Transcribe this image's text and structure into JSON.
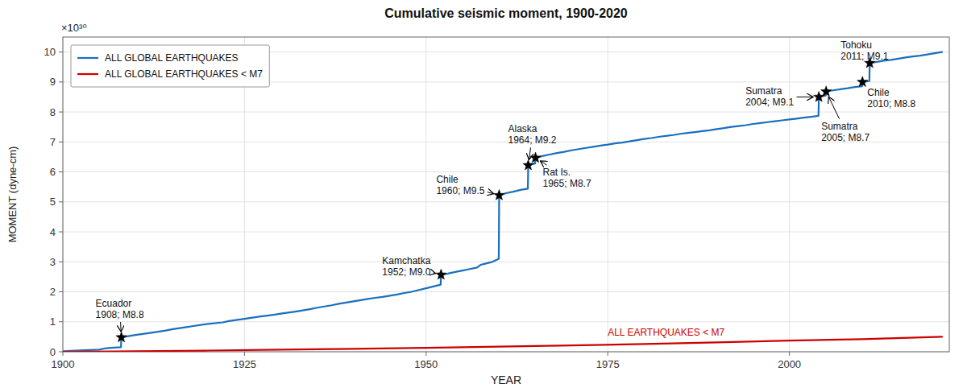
{
  "chart_data": {
    "type": "line",
    "title": "Cumulative seismic moment, 1900-2020",
    "xlabel": "YEAR",
    "ylabel": "MOMENT (dyne-cm)",
    "y_scale_label": "×10³⁰",
    "xlim": [
      1900,
      2022
    ],
    "ylim": [
      0,
      10.5
    ],
    "xticks": [
      1900,
      1925,
      1950,
      1975,
      2000
    ],
    "yticks": [
      0,
      1,
      2,
      3,
      4,
      5,
      6,
      7,
      8,
      9,
      10
    ],
    "grid": true,
    "legend": "upper left",
    "line_label": "ALL EARTHQUAKES < M7",
    "series": [
      {
        "name": "ALL GLOBAL EARTHQUAKES",
        "color": "#1a6fbd",
        "type": "line",
        "x": [
          1900,
          1903,
          1905,
          1906,
          1907,
          1908,
          1908.05,
          1909,
          1910,
          1912,
          1914,
          1915,
          1917,
          1918,
          1920,
          1922,
          1923,
          1925,
          1927,
          1929,
          1930,
          1932,
          1933,
          1934,
          1935,
          1936,
          1937,
          1938,
          1939,
          1940,
          1941,
          1942,
          1943,
          1944,
          1945,
          1946,
          1947,
          1948,
          1949,
          1950,
          1951,
          1952,
          1952.05,
          1953,
          1954,
          1955,
          1956,
          1957,
          1957.5,
          1958,
          1959,
          1960,
          1960.05,
          1961,
          1962,
          1963,
          1964,
          1964.05,
          1964.5,
          1965,
          1965.05,
          1966,
          1967,
          1968,
          1969,
          1970,
          1971,
          1972,
          1973,
          1974,
          1975,
          1976,
          1977,
          1978,
          1979,
          1980,
          1981,
          1982,
          1983,
          1984,
          1985,
          1986,
          1987,
          1988,
          1989,
          1990,
          1991,
          1992,
          1993,
          1994,
          1995,
          1996,
          1997,
          1998,
          1999,
          2000,
          2001,
          2002,
          2003,
          2004,
          2004.05,
          2004.5,
          2005,
          2005.05,
          2006,
          2007,
          2008,
          2009,
          2010,
          2010.05,
          2011,
          2011.05,
          2012,
          2013,
          2014,
          2015,
          2016,
          2017,
          2018,
          2019,
          2020,
          2021
        ],
        "values": [
          0.02,
          0.05,
          0.07,
          0.12,
          0.14,
          0.15,
          0.48,
          0.52,
          0.56,
          0.63,
          0.7,
          0.75,
          0.82,
          0.86,
          0.93,
          0.98,
          1.03,
          1.1,
          1.17,
          1.23,
          1.27,
          1.34,
          1.38,
          1.42,
          1.47,
          1.51,
          1.55,
          1.6,
          1.64,
          1.68,
          1.72,
          1.76,
          1.8,
          1.83,
          1.87,
          1.91,
          1.96,
          2.0,
          2.06,
          2.12,
          2.18,
          2.24,
          2.57,
          2.61,
          2.66,
          2.71,
          2.76,
          2.81,
          2.9,
          2.93,
          2.99,
          3.1,
          5.22,
          5.29,
          5.34,
          5.4,
          5.44,
          6.22,
          6.26,
          6.28,
          6.47,
          6.53,
          6.58,
          6.63,
          6.67,
          6.72,
          6.76,
          6.8,
          6.84,
          6.88,
          6.91,
          6.95,
          6.98,
          7.02,
          7.06,
          7.1,
          7.13,
          7.17,
          7.2,
          7.23,
          7.27,
          7.3,
          7.33,
          7.36,
          7.39,
          7.43,
          7.46,
          7.5,
          7.53,
          7.56,
          7.6,
          7.63,
          7.66,
          7.69,
          7.72,
          7.75,
          7.78,
          7.81,
          7.84,
          7.87,
          8.5,
          8.53,
          8.55,
          8.68,
          8.72,
          8.76,
          8.79,
          8.83,
          8.86,
          9.0,
          9.03,
          9.63,
          9.67,
          9.71,
          9.74,
          9.78,
          9.82,
          9.85,
          9.88,
          9.92,
          9.96,
          10.0
        ]
      },
      {
        "name": "ALL GLOBAL EARTHQUAKES < M7",
        "color": "#cc0000",
        "type": "line",
        "x": [
          1900,
          1910,
          1920,
          1930,
          1940,
          1950,
          1960,
          1970,
          1980,
          1990,
          2000,
          2010,
          2021
        ],
        "values": [
          0.0,
          0.02,
          0.04,
          0.07,
          0.1,
          0.13,
          0.17,
          0.21,
          0.26,
          0.31,
          0.37,
          0.42,
          0.5
        ]
      },
      {
        "type": "scatter",
        "marker": "star",
        "color": "black",
        "x": [
          1908.05,
          1952.05,
          1960.05,
          1964.05,
          1965.05,
          2004.05,
          2005.05,
          2010.05,
          2011.05
        ],
        "values": [
          0.48,
          2.57,
          5.22,
          6.22,
          6.47,
          8.5,
          8.68,
          9.0,
          9.63
        ]
      }
    ],
    "annotations": [
      {
        "text": "Ecuador\n1908; M8.8",
        "x": 1908.05,
        "y": 0.48
      },
      {
        "text": "Kamchatka\n1952; M9.0",
        "x": 1952.05,
        "y": 2.57
      },
      {
        "text": "Chile\n1960; M9.5",
        "x": 1960.05,
        "y": 5.22
      },
      {
        "text": "Alaska\n1964; M9.2",
        "x": 1964.05,
        "y": 6.22
      },
      {
        "text": "Rat Is.\n1965; M8.7",
        "x": 1965.05,
        "y": 6.47
      },
      {
        "text": "Sumatra\n2004; M9.1",
        "x": 2004.05,
        "y": 8.5
      },
      {
        "text": "Sumatra\n2005; M8.7",
        "x": 2005.05,
        "y": 8.68
      },
      {
        "text": "Chile\n2010; M8.8",
        "x": 2010.05,
        "y": 9.0
      },
      {
        "text": "Tohoku\n2011; M9.1",
        "x": 2011.05,
        "y": 9.63
      }
    ]
  }
}
